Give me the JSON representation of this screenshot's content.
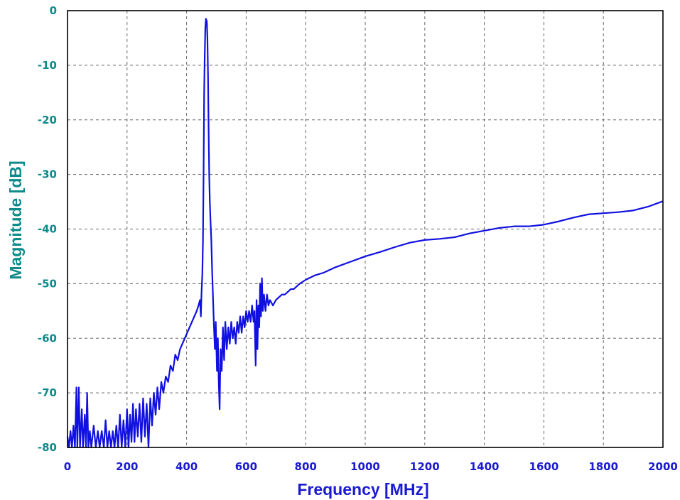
{
  "colors": {
    "series": "#1010e0",
    "xtick": "#1a1ad0",
    "ytick": "#0f8a8a",
    "xlabel": "#1a1ad0",
    "ylabel": "#0f8a8a",
    "grid": "#666666",
    "frame": "#000000"
  },
  "chart_data": {
    "type": "line",
    "title": "",
    "xlabel": "Frequency [MHz]",
    "ylabel": "Magnitude [dB]",
    "xlim": [
      0,
      2000
    ],
    "ylim": [
      -80,
      0
    ],
    "xticks": [
      0,
      200,
      400,
      600,
      800,
      1000,
      1200,
      1400,
      1600,
      1800,
      2000
    ],
    "yticks": [
      0,
      -10,
      -20,
      -30,
      -40,
      -50,
      -60,
      -70,
      -80
    ],
    "xtick_labels": [
      "0",
      "200",
      "400",
      "600",
      "800",
      "1000",
      "1200",
      "1400",
      "1600",
      "1800",
      "2000"
    ],
    "ytick_labels": [
      "0",
      "-10",
      "-20",
      "-30",
      "-40",
      "-50",
      "-60",
      "-70",
      "-80"
    ],
    "grid": true,
    "legend": "none",
    "series": [
      {
        "values": [
          [
            0,
            -78
          ],
          [
            5,
            -80
          ],
          [
            10,
            -77
          ],
          [
            15,
            -80
          ],
          [
            20,
            -76
          ],
          [
            25,
            -80
          ],
          [
            30,
            -69
          ],
          [
            33,
            -80
          ],
          [
            38,
            -69
          ],
          [
            42,
            -80
          ],
          [
            48,
            -73
          ],
          [
            52,
            -80
          ],
          [
            58,
            -74
          ],
          [
            62,
            -80
          ],
          [
            66,
            -70
          ],
          [
            70,
            -80
          ],
          [
            75,
            -77
          ],
          [
            80,
            -80
          ],
          [
            88,
            -76
          ],
          [
            95,
            -80
          ],
          [
            102,
            -77
          ],
          [
            108,
            -80
          ],
          [
            115,
            -77
          ],
          [
            122,
            -80
          ],
          [
            128,
            -75
          ],
          [
            134,
            -80
          ],
          [
            140,
            -77
          ],
          [
            146,
            -80
          ],
          [
            152,
            -77
          ],
          [
            158,
            -80
          ],
          [
            164,
            -76
          ],
          [
            170,
            -80
          ],
          [
            176,
            -74
          ],
          [
            182,
            -80
          ],
          [
            188,
            -75
          ],
          [
            194,
            -80
          ],
          [
            200,
            -73
          ],
          [
            205,
            -80
          ],
          [
            210,
            -74
          ],
          [
            215,
            -79
          ],
          [
            220,
            -72
          ],
          [
            225,
            -79
          ],
          [
            230,
            -73
          ],
          [
            236,
            -78
          ],
          [
            242,
            -72
          ],
          [
            248,
            -79
          ],
          [
            254,
            -71
          ],
          [
            260,
            -78
          ],
          [
            266,
            -72
          ],
          [
            272,
            -80
          ],
          [
            278,
            -71
          ],
          [
            284,
            -76
          ],
          [
            290,
            -70
          ],
          [
            296,
            -74
          ],
          [
            302,
            -69
          ],
          [
            308,
            -73
          ],
          [
            315,
            -68
          ],
          [
            322,
            -70
          ],
          [
            330,
            -67
          ],
          [
            338,
            -68
          ],
          [
            346,
            -65
          ],
          [
            354,
            -66
          ],
          [
            362,
            -63
          ],
          [
            370,
            -64
          ],
          [
            378,
            -62
          ],
          [
            386,
            -61
          ],
          [
            394,
            -60
          ],
          [
            402,
            -59
          ],
          [
            410,
            -58
          ],
          [
            418,
            -57
          ],
          [
            426,
            -56
          ],
          [
            434,
            -55
          ],
          [
            440,
            -54
          ],
          [
            445,
            -53
          ],
          [
            448,
            -56
          ],
          [
            450,
            -52
          ],
          [
            453,
            -48
          ],
          [
            455,
            -42
          ],
          [
            457,
            -30
          ],
          [
            459,
            -15
          ],
          [
            461,
            -8
          ],
          [
            463,
            -3
          ],
          [
            465,
            -1.5
          ],
          [
            468,
            -2
          ],
          [
            470,
            -5
          ],
          [
            472,
            -12
          ],
          [
            474,
            -22
          ],
          [
            476,
            -30
          ],
          [
            478,
            -35
          ],
          [
            480,
            -38
          ],
          [
            483,
            -42
          ],
          [
            486,
            -48
          ],
          [
            489,
            -53
          ],
          [
            492,
            -58
          ],
          [
            495,
            -62
          ],
          [
            498,
            -57
          ],
          [
            502,
            -66
          ],
          [
            505,
            -60
          ],
          [
            508,
            -68
          ],
          [
            511,
            -73
          ],
          [
            514,
            -62
          ],
          [
            518,
            -66
          ],
          [
            522,
            -58
          ],
          [
            526,
            -64
          ],
          [
            530,
            -57
          ],
          [
            535,
            -62
          ],
          [
            540,
            -58
          ],
          [
            545,
            -61
          ],
          [
            550,
            -57
          ],
          [
            555,
            -60
          ],
          [
            560,
            -58
          ],
          [
            565,
            -61
          ],
          [
            570,
            -57
          ],
          [
            575,
            -59
          ],
          [
            580,
            -56
          ],
          [
            585,
            -59
          ],
          [
            590,
            -56
          ],
          [
            595,
            -58
          ],
          [
            600,
            -55
          ],
          [
            605,
            -57
          ],
          [
            610,
            -55
          ],
          [
            615,
            -57
          ],
          [
            620,
            -54
          ],
          [
            625,
            -57
          ],
          [
            628,
            -55
          ],
          [
            630,
            -60
          ],
          [
            632,
            -65
          ],
          [
            635,
            -53
          ],
          [
            638,
            -62
          ],
          [
            641,
            -54
          ],
          [
            644,
            -58
          ],
          [
            647,
            -50
          ],
          [
            650,
            -56
          ],
          [
            653,
            -49
          ],
          [
            656,
            -55
          ],
          [
            660,
            -52
          ],
          [
            665,
            -55
          ],
          [
            670,
            -52
          ],
          [
            675,
            -54
          ],
          [
            680,
            -53
          ],
          [
            690,
            -54
          ],
          [
            700,
            -53
          ],
          [
            710,
            -52.5
          ],
          [
            720,
            -52
          ],
          [
            730,
            -52
          ],
          [
            740,
            -51.5
          ],
          [
            750,
            -51
          ],
          [
            760,
            -51
          ],
          [
            770,
            -50.5
          ],
          [
            780,
            -50
          ],
          [
            800,
            -49.3
          ],
          [
            830,
            -48.5
          ],
          [
            860,
            -48
          ],
          [
            900,
            -47
          ],
          [
            950,
            -46
          ],
          [
            1000,
            -45
          ],
          [
            1050,
            -44.2
          ],
          [
            1100,
            -43.3
          ],
          [
            1150,
            -42.5
          ],
          [
            1200,
            -42
          ],
          [
            1250,
            -41.8
          ],
          [
            1300,
            -41.5
          ],
          [
            1350,
            -40.8
          ],
          [
            1400,
            -40.3
          ],
          [
            1450,
            -39.8
          ],
          [
            1500,
            -39.5
          ],
          [
            1550,
            -39.5
          ],
          [
            1600,
            -39.2
          ],
          [
            1650,
            -38.6
          ],
          [
            1700,
            -37.9
          ],
          [
            1750,
            -37.3
          ],
          [
            1800,
            -37.1
          ],
          [
            1850,
            -36.9
          ],
          [
            1900,
            -36.6
          ],
          [
            1950,
            -35.9
          ],
          [
            2000,
            -34.9
          ]
        ]
      }
    ]
  }
}
